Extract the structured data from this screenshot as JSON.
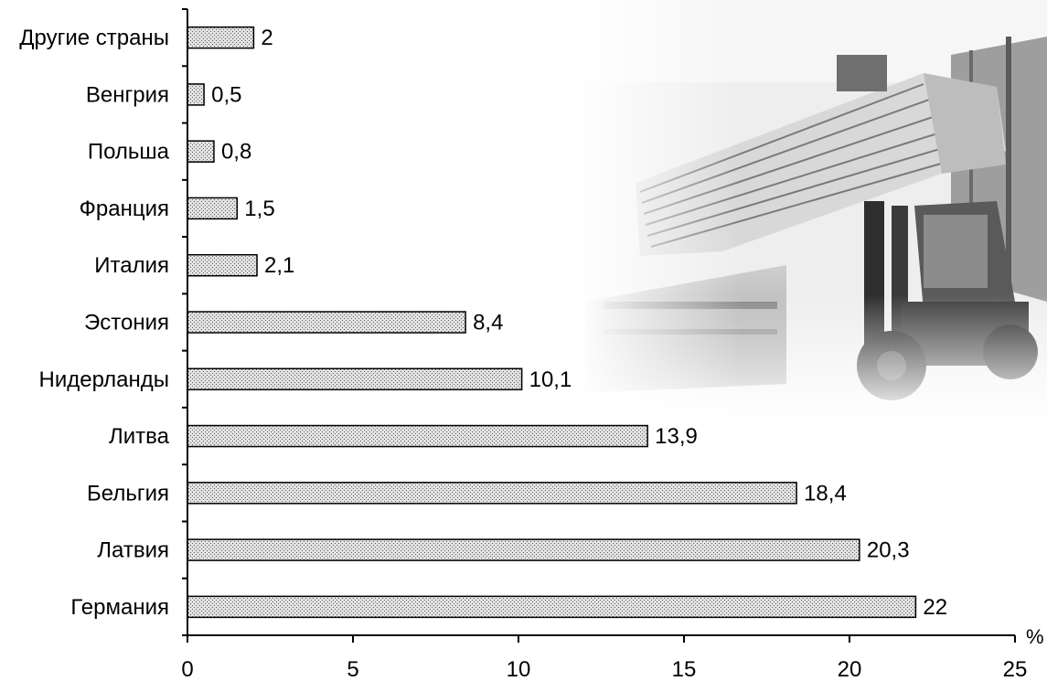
{
  "chart_data": {
    "type": "bar",
    "orientation": "horizontal",
    "categories": [
      "Германия",
      "Латвия",
      "Бельгия",
      "Литва",
      "Нидерланды",
      "Эстония",
      "Италия",
      "Франция",
      "Польша",
      "Венгрия",
      "Другие страны"
    ],
    "values": [
      22,
      20.3,
      18.4,
      13.9,
      10.1,
      8.4,
      2.1,
      1.5,
      0.8,
      0.5,
      2
    ],
    "value_labels": [
      "22",
      "20,3",
      "18,4",
      "13,9",
      "10,1",
      "8,4",
      "2,1",
      "1,5",
      "0,8",
      "0,5",
      "2"
    ],
    "xlim": [
      0,
      25
    ],
    "xticks": [
      0,
      5,
      10,
      15,
      20,
      25
    ],
    "unit": "%",
    "grid": false,
    "bar_fill": "stippled light gray",
    "background_image": "forklift-photo"
  }
}
